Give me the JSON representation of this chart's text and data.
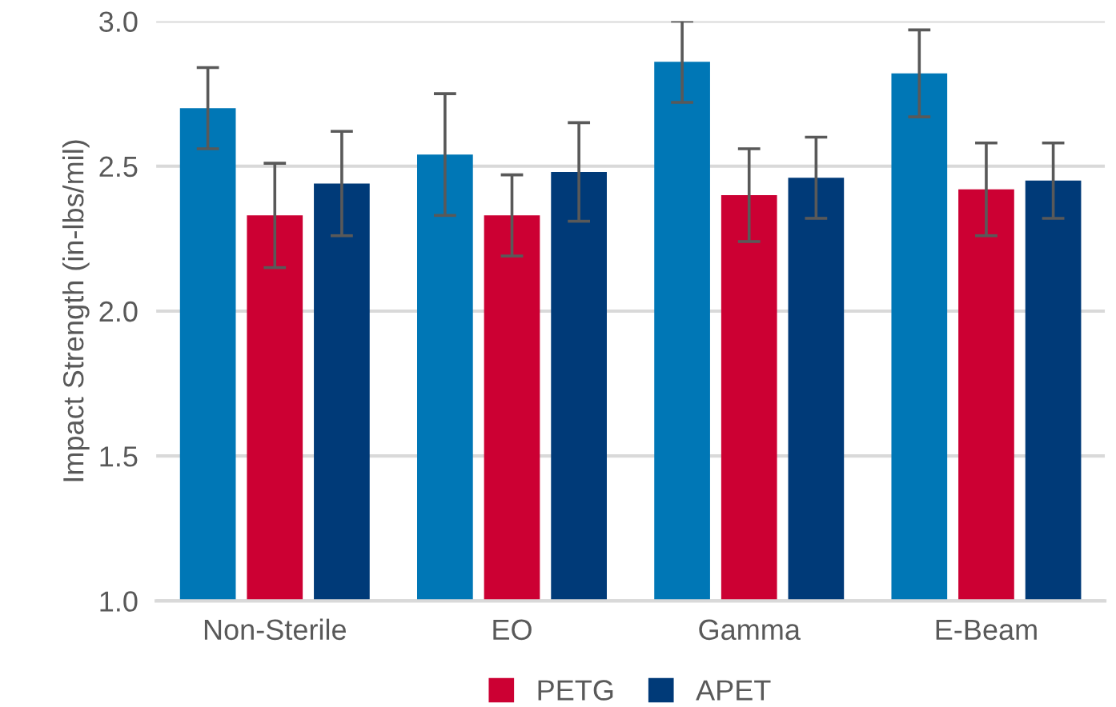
{
  "chart_data": {
    "type": "bar",
    "ylabel": "Impact Strength (in-lbs/mil)",
    "categories": [
      "Non-Sterile",
      "EO",
      "Gamma",
      "E-Beam"
    ],
    "series": [
      {
        "color": "#0077b6",
        "values": [
          2.7,
          2.54,
          2.86,
          2.82
        ],
        "errors": [
          0.14,
          0.21,
          0.14,
          0.15
        ]
      },
      {
        "name": "PETG",
        "color": "#cc0033",
        "values": [
          2.33,
          2.33,
          2.4,
          2.42
        ],
        "errors": [
          0.18,
          0.14,
          0.16,
          0.16
        ]
      },
      {
        "name": "APET",
        "color": "#003a78",
        "values": [
          2.44,
          2.48,
          2.46,
          2.45
        ],
        "errors": [
          0.18,
          0.17,
          0.14,
          0.13
        ]
      }
    ],
    "ylim": [
      1.0,
      3.0
    ],
    "yticks": [
      {
        "value": 1.0,
        "label": "1.0"
      },
      {
        "value": 1.5,
        "label": "1.5"
      },
      {
        "value": 2.0,
        "label": "2.0"
      },
      {
        "value": 2.5,
        "label": "2.5"
      },
      {
        "value": 3.0,
        "label": "3.0"
      }
    ],
    "grid": "y",
    "legend": "bottom"
  }
}
